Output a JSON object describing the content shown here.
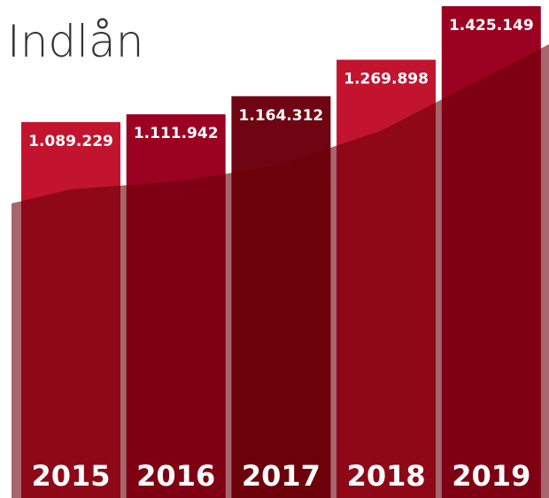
{
  "chart_data": {
    "type": "bar",
    "title": "Indlån",
    "categories": [
      "2015",
      "2016",
      "2017",
      "2018",
      "2019"
    ],
    "values": [
      1089229,
      1111942,
      1164312,
      1269898,
      1425149
    ],
    "value_labels": [
      "1.089.229",
      "1.111.942",
      "1.164.312",
      "1.269.898",
      "1.425.149"
    ],
    "colors": [
      "#c2142f",
      "#9b0222",
      "#6f0412",
      "#c2142f",
      "#9b0222"
    ]
  }
}
